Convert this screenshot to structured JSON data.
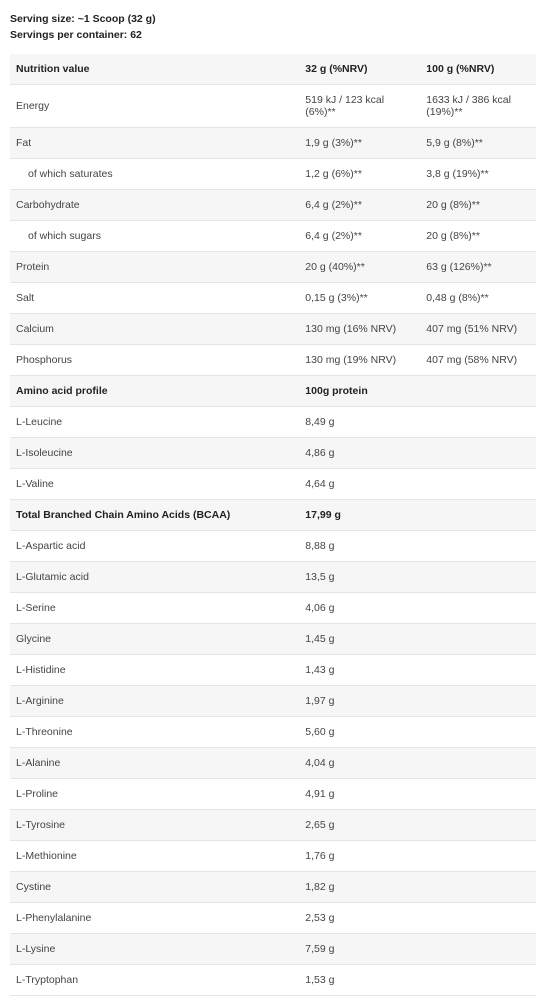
{
  "serving": {
    "size": "Serving size: ~1 Scoop (32 g)",
    "per_container": "Servings per container: 62"
  },
  "headers": {
    "nutrition": "Nutrition value",
    "col32": "32 g (%NRV)",
    "col100": "100 g (%NRV)",
    "amino": "Amino acid profile",
    "amino_col": "100g protein",
    "bcaa": "Total Branched Chain Amino Acids (BCAA)",
    "bcaa_val": "17,99 g"
  },
  "nutrition": [
    {
      "label": "Energy",
      "v32": "519 kJ / 123 kcal (6%)**",
      "v100": "1633 kJ / 386 kcal (19%)**",
      "indent": false
    },
    {
      "label": "Fat",
      "v32": "1,9 g (3%)**",
      "v100": "5,9 g (8%)**",
      "indent": false
    },
    {
      "label": "of which saturates",
      "v32": "1,2 g (6%)**",
      "v100": "3,8 g (19%)**",
      "indent": true
    },
    {
      "label": "Carbohydrate",
      "v32": "6,4 g (2%)**",
      "v100": "20 g (8%)**",
      "indent": false
    },
    {
      "label": "of which sugars",
      "v32": "6,4 g (2%)**",
      "v100": "20 g (8%)**",
      "indent": true
    },
    {
      "label": "Protein",
      "v32": "20 g (40%)**",
      "v100": "63 g (126%)**",
      "indent": false
    },
    {
      "label": "Salt",
      "v32": "0,15 g (3%)**",
      "v100": "0,48 g (8%)**",
      "indent": false
    },
    {
      "label": "Calcium",
      "v32": "130 mg (16% NRV)",
      "v100": "407 mg (51% NRV)",
      "indent": false
    },
    {
      "label": "Phosphorus",
      "v32": "130 mg (19% NRV)",
      "v100": "407 mg (58% NRV)",
      "indent": false
    }
  ],
  "amino_top": [
    {
      "label": "L-Leucine",
      "val": "8,49 g"
    },
    {
      "label": "L-Isoleucine",
      "val": "4,86 g"
    },
    {
      "label": "L-Valine",
      "val": "4,64 g"
    }
  ],
  "amino_rest": [
    {
      "label": "L-Aspartic acid",
      "val": "8,88 g"
    },
    {
      "label": "L-Glutamic acid",
      "val": "13,5 g"
    },
    {
      "label": "L-Serine",
      "val": "4,06 g"
    },
    {
      "label": "Glycine",
      "val": "1,45 g"
    },
    {
      "label": "L-Histidine",
      "val": "1,43 g"
    },
    {
      "label": "L-Arginine",
      "val": "1,97 g"
    },
    {
      "label": "L-Threonine",
      "val": "5,60 g"
    },
    {
      "label": "L-Alanine",
      "val": "4,04 g"
    },
    {
      "label": "L-Proline",
      "val": "4,91 g"
    },
    {
      "label": "L-Tyrosine",
      "val": "2,65 g"
    },
    {
      "label": "L-Methionine",
      "val": "1,76 g"
    },
    {
      "label": "Cystine",
      "val": "1,82 g"
    },
    {
      "label": "L-Phenylalanine",
      "val": "2,53 g"
    },
    {
      "label": "L-Lysine",
      "val": "7,59 g"
    },
    {
      "label": "L-Tryptophan",
      "val": "1,53 g"
    }
  ]
}
